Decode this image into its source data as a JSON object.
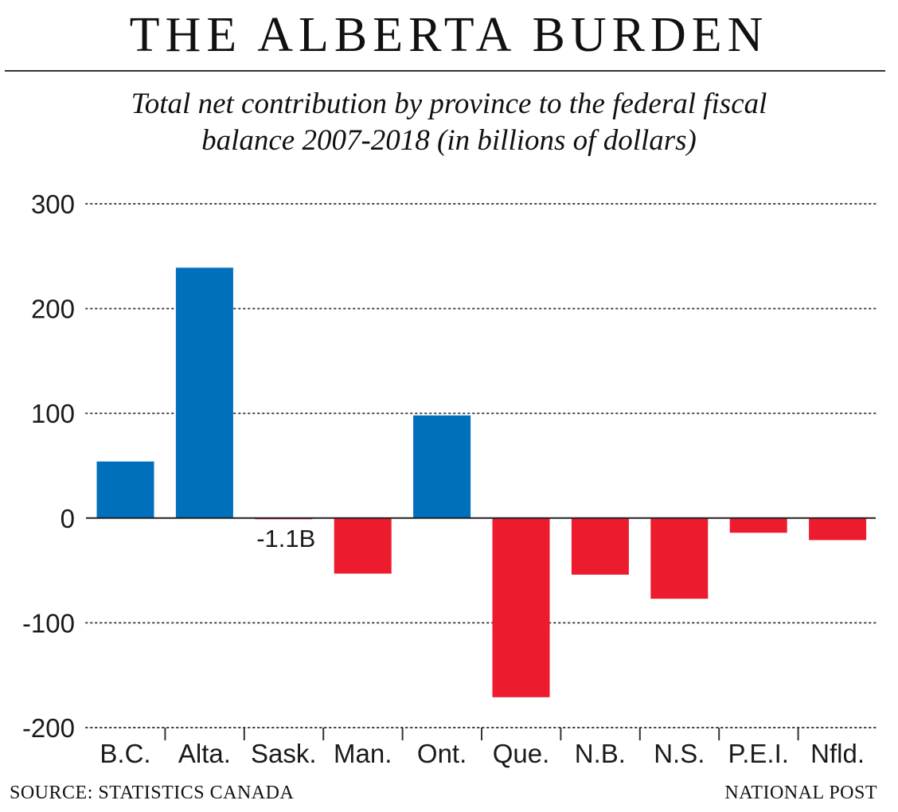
{
  "header": {
    "title": "THE ALBERTA BURDEN",
    "subtitle_line1": "Total net contribution by province to the federal fiscal",
    "subtitle_line2": "balance 2007-2018 (in billions of dollars)"
  },
  "footer": {
    "source": "SOURCE: STATISTICS CANADA",
    "credit": "NATIONAL POST"
  },
  "colors": {
    "positive": "#0070bc",
    "negative": "#ec1c2e",
    "grid": "#444444",
    "zero_line": "#222222"
  },
  "chart_data": {
    "type": "bar",
    "title": "THE ALBERTA BURDEN",
    "subtitle": "Total net contribution by province to the federal fiscal balance 2007-2018 (in billions of dollars)",
    "xlabel": "",
    "ylabel": "",
    "categories": [
      "B.C.",
      "Alta.",
      "Sask.",
      "Man.",
      "Ont.",
      "Que.",
      "N.B.",
      "N.S.",
      "P.E.I.",
      "Nfld."
    ],
    "values": [
      54,
      239,
      -1.1,
      -53,
      98,
      -171,
      -54,
      -77,
      -14,
      -21
    ],
    "ylim": [
      -200,
      300
    ],
    "yticks": [
      300,
      200,
      100,
      0,
      -100,
      -200
    ],
    "ytick_labels": [
      "300",
      "200",
      "100",
      "0",
      "-100",
      "-200"
    ],
    "grid": "dotted horizontal",
    "annotations": [
      {
        "category": "Sask.",
        "text": "-1.1B"
      }
    ]
  }
}
